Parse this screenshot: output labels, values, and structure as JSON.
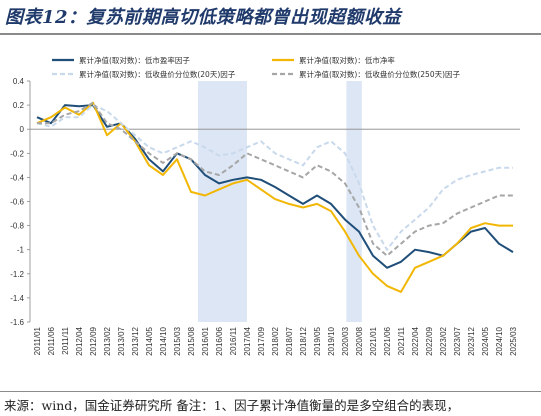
{
  "figure": {
    "title": "图表12：复苏前期高切低策略都曾出现超额收益",
    "note": "来源：wind，国金证券研究所 备注：1、因子累计净值衡量的是多空组合的表现，"
  },
  "chart_data": {
    "type": "line",
    "ylim": [
      -1.6,
      0.4
    ],
    "yticks": [
      0.4,
      0.2,
      0,
      -0.2,
      -0.4,
      -0.6,
      -0.8,
      -1,
      -1.2,
      -1.4,
      -1.6
    ],
    "categories": [
      "2011/01",
      "2011/06",
      "2011/11",
      "2012/04",
      "2012/09",
      "2013/02",
      "2013/07",
      "2013/12",
      "2014/05",
      "2014/10",
      "2015/03",
      "2015/08",
      "2016/01",
      "2016/06",
      "2016/11",
      "2017/04",
      "2017/09",
      "2018/02",
      "2018/07",
      "2018/12",
      "2019/05",
      "2019/10",
      "2020/03",
      "2020/08",
      "2021/01",
      "2021/06",
      "2021/11",
      "2022/04",
      "2022/09",
      "2023/02",
      "2023/07",
      "2023/12",
      "2024/05",
      "2024/10",
      "2025/03"
    ],
    "shaded_ranges": [
      [
        "2016/01",
        "2017/04"
      ],
      [
        "2020/06",
        "2020/09"
      ]
    ],
    "legend": {
      "placement": "top",
      "columns": 2
    },
    "grid": false,
    "series": [
      {
        "name": "累计净值(取对数)：低市盈率因子",
        "color": "#1f4e79",
        "dash": "solid",
        "values": [
          [
            0,
            0.1
          ],
          [
            1,
            0.05
          ],
          [
            2,
            0.2
          ],
          [
            3,
            0.19
          ],
          [
            4,
            0.2
          ],
          [
            5,
            0.02
          ],
          [
            6,
            0.05
          ],
          [
            7,
            -0.08
          ],
          [
            8,
            -0.25
          ],
          [
            9,
            -0.35
          ],
          [
            10,
            -0.2
          ],
          [
            11,
            -0.25
          ],
          [
            12,
            -0.38
          ],
          [
            13,
            -0.45
          ],
          [
            14,
            -0.42
          ],
          [
            15,
            -0.4
          ],
          [
            16,
            -0.42
          ],
          [
            17,
            -0.48
          ],
          [
            18,
            -0.55
          ],
          [
            19,
            -0.62
          ],
          [
            20,
            -0.55
          ],
          [
            21,
            -0.62
          ],
          [
            22,
            -0.75
          ],
          [
            23,
            -0.85
          ],
          [
            24,
            -1.05
          ],
          [
            25,
            -1.15
          ],
          [
            26,
            -1.1
          ],
          [
            27,
            -1.0
          ],
          [
            28,
            -1.02
          ],
          [
            29,
            -1.05
          ],
          [
            30,
            -0.95
          ],
          [
            31,
            -0.85
          ],
          [
            32,
            -0.82
          ],
          [
            33,
            -0.95
          ],
          [
            34,
            -1.02
          ]
        ]
      },
      {
        "name": "累计净值(取对数)：低市净率",
        "color": "#f2b705",
        "dash": "solid",
        "values": [
          [
            0,
            0.05
          ],
          [
            1,
            0.1
          ],
          [
            2,
            0.18
          ],
          [
            3,
            0.12
          ],
          [
            4,
            0.22
          ],
          [
            5,
            -0.05
          ],
          [
            6,
            0.05
          ],
          [
            7,
            -0.1
          ],
          [
            8,
            -0.3
          ],
          [
            9,
            -0.38
          ],
          [
            10,
            -0.25
          ],
          [
            11,
            -0.52
          ],
          [
            12,
            -0.55
          ],
          [
            13,
            -0.5
          ],
          [
            14,
            -0.45
          ],
          [
            15,
            -0.42
          ],
          [
            16,
            -0.5
          ],
          [
            17,
            -0.58
          ],
          [
            18,
            -0.62
          ],
          [
            19,
            -0.65
          ],
          [
            20,
            -0.62
          ],
          [
            21,
            -0.68
          ],
          [
            22,
            -0.85
          ],
          [
            23,
            -1.05
          ],
          [
            24,
            -1.2
          ],
          [
            25,
            -1.3
          ],
          [
            26,
            -1.35
          ],
          [
            27,
            -1.15
          ],
          [
            28,
            -1.1
          ],
          [
            29,
            -1.05
          ],
          [
            30,
            -0.95
          ],
          [
            31,
            -0.82
          ],
          [
            32,
            -0.78
          ],
          [
            33,
            -0.8
          ],
          [
            34,
            -0.8
          ]
        ]
      },
      {
        "name": "累计净值(取对数)：低收盘价分位数(20天)因子",
        "color": "#c9d9ec",
        "dash": "dashed",
        "values": [
          [
            0,
            0.05
          ],
          [
            1,
            0.02
          ],
          [
            2,
            0.1
          ],
          [
            3,
            0.1
          ],
          [
            4,
            0.2
          ],
          [
            5,
            0.15
          ],
          [
            6,
            0.05
          ],
          [
            7,
            -0.05
          ],
          [
            8,
            -0.15
          ],
          [
            9,
            -0.2
          ],
          [
            10,
            -0.15
          ],
          [
            11,
            -0.1
          ],
          [
            12,
            -0.15
          ],
          [
            13,
            -0.22
          ],
          [
            14,
            -0.2
          ],
          [
            15,
            -0.15
          ],
          [
            16,
            -0.1
          ],
          [
            17,
            -0.2
          ],
          [
            18,
            -0.25
          ],
          [
            19,
            -0.3
          ],
          [
            20,
            -0.15
          ],
          [
            21,
            -0.1
          ],
          [
            22,
            -0.2
          ],
          [
            23,
            -0.45
          ],
          [
            24,
            -0.8
          ],
          [
            25,
            -1.0
          ],
          [
            26,
            -0.85
          ],
          [
            27,
            -0.75
          ],
          [
            28,
            -0.65
          ],
          [
            29,
            -0.5
          ],
          [
            30,
            -0.42
          ],
          [
            31,
            -0.38
          ],
          [
            32,
            -0.35
          ],
          [
            33,
            -0.32
          ],
          [
            34,
            -0.32
          ]
        ]
      },
      {
        "name": "累计净值(取对数)：低收盘价分位数(250天)因子",
        "color": "#a6a6a6",
        "dash": "dashed",
        "values": [
          [
            0,
            0.05
          ],
          [
            1,
            0.05
          ],
          [
            2,
            0.12
          ],
          [
            3,
            0.15
          ],
          [
            4,
            0.22
          ],
          [
            5,
            0.05
          ],
          [
            6,
            0.0
          ],
          [
            7,
            -0.1
          ],
          [
            8,
            -0.2
          ],
          [
            9,
            -0.28
          ],
          [
            10,
            -0.2
          ],
          [
            11,
            -0.25
          ],
          [
            12,
            -0.35
          ],
          [
            13,
            -0.38
          ],
          [
            14,
            -0.3
          ],
          [
            15,
            -0.2
          ],
          [
            16,
            -0.25
          ],
          [
            17,
            -0.3
          ],
          [
            18,
            -0.35
          ],
          [
            19,
            -0.4
          ],
          [
            20,
            -0.3
          ],
          [
            21,
            -0.35
          ],
          [
            22,
            -0.45
          ],
          [
            23,
            -0.65
          ],
          [
            24,
            -0.95
          ],
          [
            25,
            -1.05
          ],
          [
            26,
            -0.95
          ],
          [
            27,
            -0.85
          ],
          [
            28,
            -0.8
          ],
          [
            29,
            -0.78
          ],
          [
            30,
            -0.7
          ],
          [
            31,
            -0.65
          ],
          [
            32,
            -0.6
          ],
          [
            33,
            -0.55
          ],
          [
            34,
            -0.55
          ]
        ]
      }
    ]
  }
}
